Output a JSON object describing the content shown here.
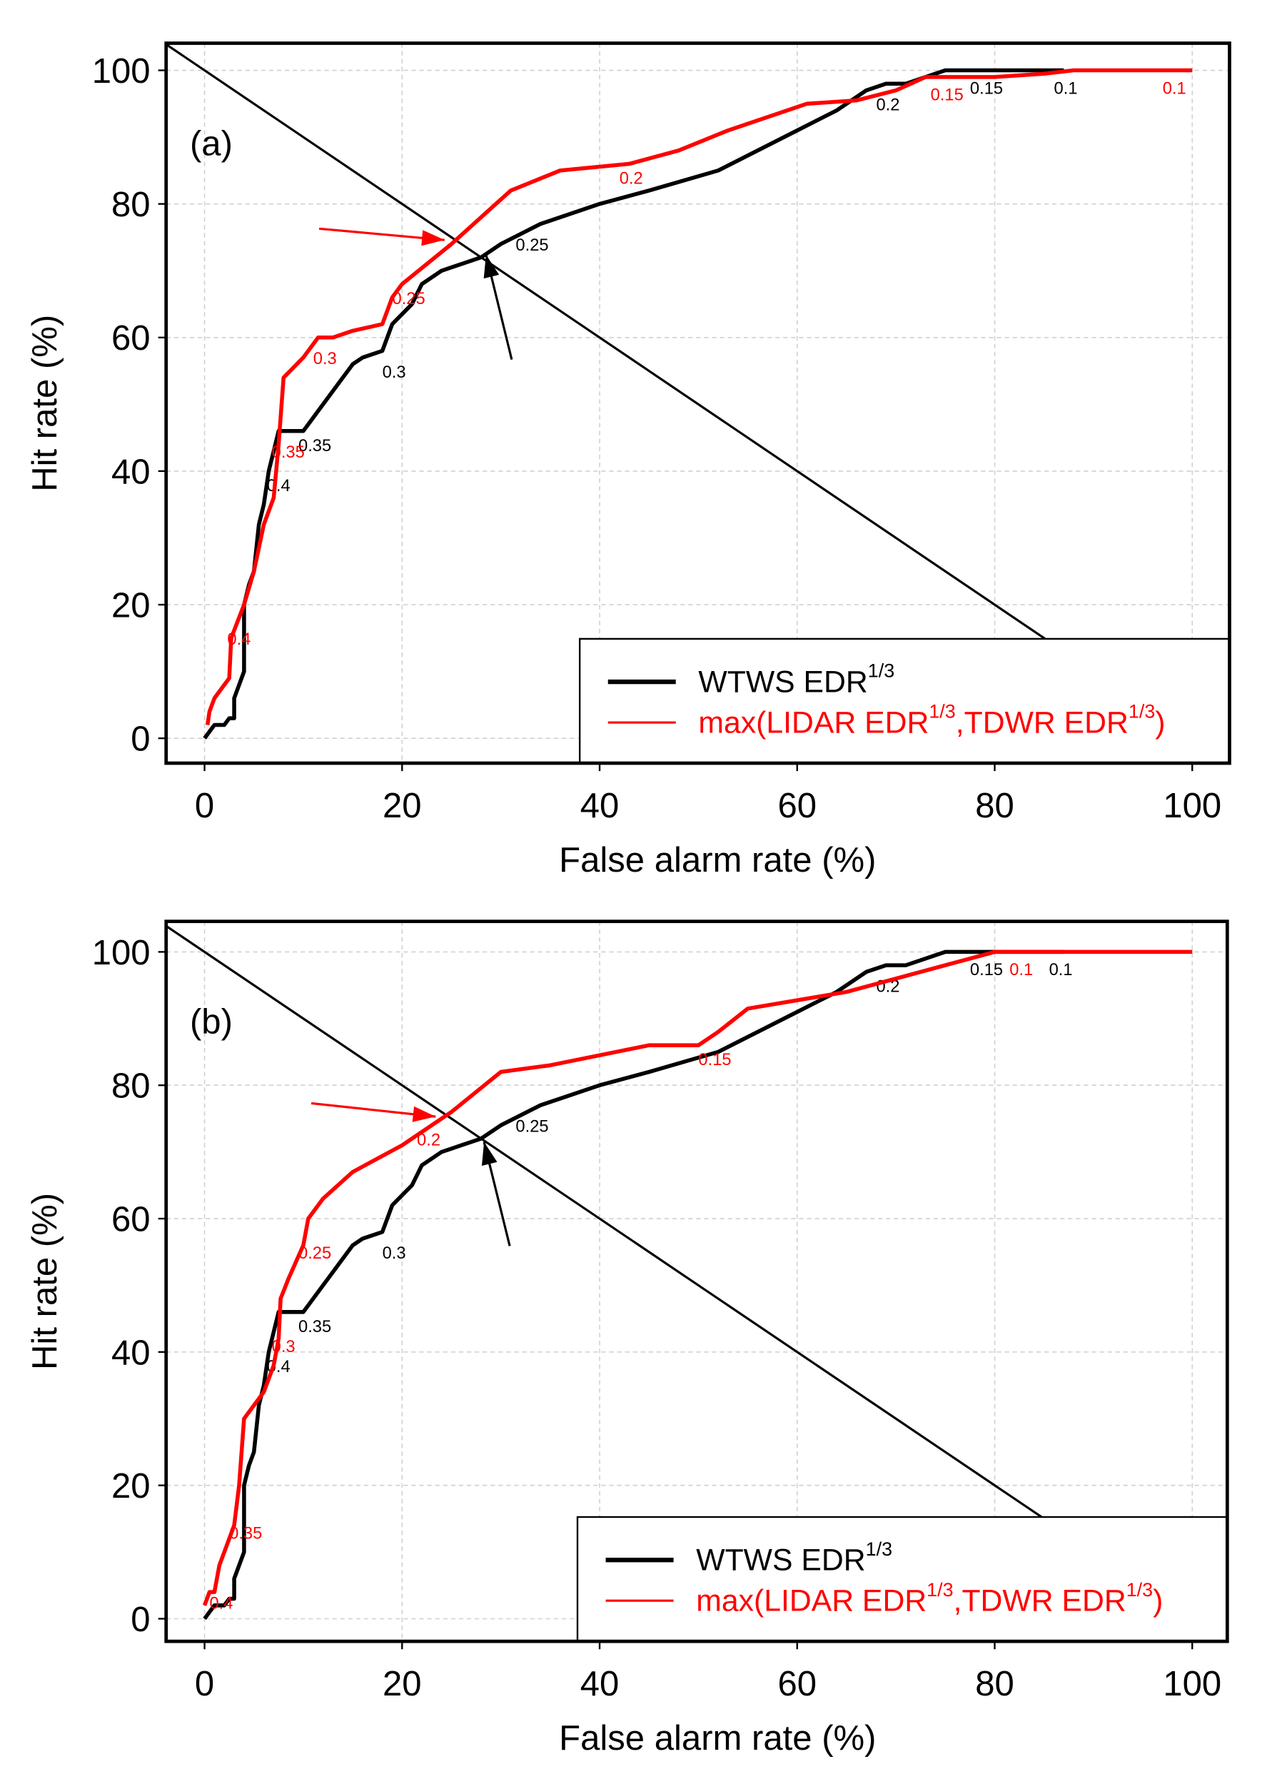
{
  "chart_data": [
    {
      "type": "line",
      "panel_label": "(a)",
      "xlabel": "False alarm rate (%)",
      "ylabel": "Hit rate (%)",
      "xlim": [
        -4,
        104
      ],
      "ylim": [
        -4,
        104
      ],
      "xticks": [
        "0",
        "20",
        "40",
        "60",
        "80",
        "100"
      ],
      "yticks": [
        "0",
        "20",
        "40",
        "60",
        "80",
        "100"
      ],
      "grid": true,
      "legend_position": "bottom-right",
      "legend": [
        {
          "text": "WTWS EDR",
          "sup": "1/3",
          "color": "#000000"
        },
        {
          "text": "max(LIDAR EDR",
          "sup": "1/3",
          "mid": ",TDWR EDR",
          "sup2": "1/3",
          "end": ")",
          "color": "#ff0000"
        }
      ],
      "series": [
        {
          "name": "WTWS EDR1/3",
          "color": "#000000",
          "points": [
            [
              0,
              0
            ],
            [
              1,
              2
            ],
            [
              2,
              2
            ],
            [
              2.5,
              3
            ],
            [
              3,
              3
            ],
            [
              3,
              6
            ],
            [
              3.5,
              8
            ],
            [
              4,
              10
            ],
            [
              4,
              20
            ],
            [
              4.5,
              23
            ],
            [
              5,
              25
            ],
            [
              5.5,
              32
            ],
            [
              6,
              35
            ],
            [
              6.5,
              40
            ],
            [
              7,
              43
            ],
            [
              7.5,
              46
            ],
            [
              10,
              46
            ],
            [
              11,
              48
            ],
            [
              13,
              52
            ],
            [
              15,
              56
            ],
            [
              16,
              57
            ],
            [
              18,
              58
            ],
            [
              19,
              62
            ],
            [
              21,
              65
            ],
            [
              22,
              68
            ],
            [
              24,
              70
            ],
            [
              26,
              71
            ],
            [
              28,
              72
            ],
            [
              30,
              74
            ],
            [
              34,
              77
            ],
            [
              40,
              80
            ],
            [
              45,
              82
            ],
            [
              52,
              85
            ],
            [
              60,
              91
            ],
            [
              64,
              94
            ],
            [
              67,
              97
            ],
            [
              69,
              98
            ],
            [
              71,
              98
            ],
            [
              73,
              99
            ],
            [
              75,
              100
            ],
            [
              87,
              100
            ]
          ],
          "labels": [
            [
              "0.4",
              6.3,
              37
            ],
            [
              "0.35",
              9.5,
              43
            ],
            [
              "0.3",
              18,
              54
            ],
            [
              "0.25",
              31.5,
              73
            ],
            [
              "0.2",
              68,
              94
            ],
            [
              "0.15",
              77.5,
              96.5
            ],
            [
              "0.1",
              86,
              96.5
            ]
          ]
        },
        {
          "name": "max(LIDAR EDR1/3,TDWR EDR1/3)",
          "color": "#ff0000",
          "points": [
            [
              0.3,
              2
            ],
            [
              0.5,
              4
            ],
            [
              1,
              6
            ],
            [
              2,
              8
            ],
            [
              2.5,
              9
            ],
            [
              2.7,
              15
            ],
            [
              4,
              20
            ],
            [
              5,
              25
            ],
            [
              6,
              32
            ],
            [
              7,
              36
            ],
            [
              7.5,
              44
            ],
            [
              8,
              54
            ],
            [
              10,
              57
            ],
            [
              11.5,
              60
            ],
            [
              13,
              60
            ],
            [
              15,
              61
            ],
            [
              18,
              62
            ],
            [
              19,
              66
            ],
            [
              20,
              68
            ],
            [
              25,
              74
            ],
            [
              28,
              78
            ],
            [
              31,
              82
            ],
            [
              36,
              85
            ],
            [
              43,
              86
            ],
            [
              48,
              88
            ],
            [
              53,
              91
            ],
            [
              57,
              93
            ],
            [
              61,
              95
            ],
            [
              66,
              95.5
            ],
            [
              70,
              97
            ],
            [
              73,
              99
            ],
            [
              80,
              99
            ],
            [
              85,
              99.5
            ],
            [
              88,
              100
            ],
            [
              100,
              100
            ]
          ],
          "labels": [
            [
              "0.4",
              2.3,
              14
            ],
            [
              "0.35",
              6.8,
              42
            ],
            [
              "0.3",
              11,
              56
            ],
            [
              "0.25",
              19,
              65
            ],
            [
              "0.2",
              42,
              83
            ],
            [
              "0.15",
              73.5,
              95.5
            ],
            [
              "0.1",
              97,
              96.5
            ]
          ]
        }
      ],
      "reference_line": {
        "from": [
          -4,
          104
        ],
        "to": [
          85.2,
          14.8
        ],
        "color": "#000000"
      },
      "arrows": [
        {
          "color": "#ff0000",
          "from": [
            11.6,
            76.3
          ],
          "to": [
            24.3,
            74.6
          ]
        },
        {
          "color": "#000000",
          "from": [
            31.1,
            56.7
          ],
          "to": [
            28.5,
            72.4
          ]
        }
      ]
    },
    {
      "type": "line",
      "panel_label": "(b)",
      "xlabel": "False alarm rate (%)",
      "ylabel": "Hit rate (%)",
      "xlim": [
        -4,
        104
      ],
      "ylim": [
        -4,
        104
      ],
      "xticks": [
        "0",
        "20",
        "40",
        "60",
        "80",
        "100"
      ],
      "yticks": [
        "0",
        "20",
        "40",
        "60",
        "80",
        "100"
      ],
      "grid": true,
      "legend_position": "bottom-right",
      "legend": [
        {
          "text": "WTWS EDR",
          "sup": "1/3",
          "color": "#000000"
        },
        {
          "text": "max(LIDAR EDR",
          "sup": "1/3",
          "mid": ",TDWR EDR",
          "sup2": "1/3",
          "end": ")",
          "color": "#ff0000"
        }
      ],
      "series": [
        {
          "name": "WTWS EDR1/3",
          "color": "#000000",
          "points": [
            [
              0,
              0
            ],
            [
              1,
              2
            ],
            [
              2,
              2
            ],
            [
              2.5,
              3
            ],
            [
              3,
              3
            ],
            [
              3,
              6
            ],
            [
              3.5,
              8
            ],
            [
              4,
              10
            ],
            [
              4,
              20
            ],
            [
              4.5,
              23
            ],
            [
              5,
              25
            ],
            [
              5.5,
              32
            ],
            [
              6,
              35
            ],
            [
              6.5,
              40
            ],
            [
              7,
              43
            ],
            [
              7.5,
              46
            ],
            [
              10,
              46
            ],
            [
              11,
              48
            ],
            [
              13,
              52
            ],
            [
              15,
              56
            ],
            [
              16,
              57
            ],
            [
              18,
              58
            ],
            [
              19,
              62
            ],
            [
              21,
              65
            ],
            [
              22,
              68
            ],
            [
              24,
              70
            ],
            [
              26,
              71
            ],
            [
              28,
              72
            ],
            [
              30,
              74
            ],
            [
              34,
              77
            ],
            [
              40,
              80
            ],
            [
              45,
              82
            ],
            [
              52,
              85
            ],
            [
              60,
              91
            ],
            [
              64,
              94
            ],
            [
              67,
              97
            ],
            [
              69,
              98
            ],
            [
              71,
              98
            ],
            [
              73,
              99
            ],
            [
              75,
              100
            ],
            [
              87,
              100
            ]
          ],
          "labels": [
            [
              "0.4",
              6.3,
              37
            ],
            [
              "0.35",
              9.5,
              43
            ],
            [
              "0.3",
              18,
              54
            ],
            [
              "0.25",
              31.5,
              73
            ],
            [
              "0.2",
              68,
              94
            ],
            [
              "0.15",
              77.5,
              96.5
            ],
            [
              "0.1",
              85.5,
              96.5
            ]
          ]
        },
        {
          "name": "max(LIDAR EDR1/3,TDWR EDR1/3)",
          "color": "#ff0000",
          "points": [
            [
              0,
              2
            ],
            [
              0.5,
              4
            ],
            [
              1,
              4
            ],
            [
              1.5,
              8
            ],
            [
              2,
              10
            ],
            [
              3,
              14
            ],
            [
              3.5,
              20
            ],
            [
              4,
              30
            ],
            [
              5,
              32
            ],
            [
              6,
              34
            ],
            [
              7,
              38
            ],
            [
              7.5,
              42
            ],
            [
              7.7,
              48
            ],
            [
              8.5,
              51
            ],
            [
              10,
              56
            ],
            [
              10.5,
              60
            ],
            [
              12,
              63
            ],
            [
              15,
              67
            ],
            [
              20,
              71
            ],
            [
              25,
              76
            ],
            [
              30,
              82
            ],
            [
              35,
              83
            ],
            [
              40,
              84.5
            ],
            [
              45,
              86
            ],
            [
              50,
              86
            ],
            [
              52,
              88
            ],
            [
              55,
              91.5
            ],
            [
              65,
              94
            ],
            [
              70,
              96
            ],
            [
              75,
              98
            ],
            [
              80,
              100
            ],
            [
              100,
              100
            ]
          ],
          "labels": [
            [
              "0.4",
              0.5,
              1.5
            ],
            [
              "0.35",
              2.5,
              12
            ],
            [
              "0.3",
              6.8,
              40
            ],
            [
              "0.25",
              9.5,
              54
            ],
            [
              "0.2",
              21.5,
              71
            ],
            [
              "0.15",
              50,
              83
            ],
            [
              "0.1",
              81.5,
              96.5
            ]
          ]
        }
      ],
      "reference_line": {
        "from": [
          -4,
          104
        ],
        "to": [
          85.2,
          14.8
        ],
        "color": "#000000"
      },
      "arrows": [
        {
          "color": "#ff0000",
          "from": [
            10.8,
            77.3
          ],
          "to": [
            23.4,
            75.3
          ]
        },
        {
          "color": "#000000",
          "from": [
            30.9,
            55.9
          ],
          "to": [
            28.3,
            71.5
          ]
        }
      ]
    }
  ]
}
